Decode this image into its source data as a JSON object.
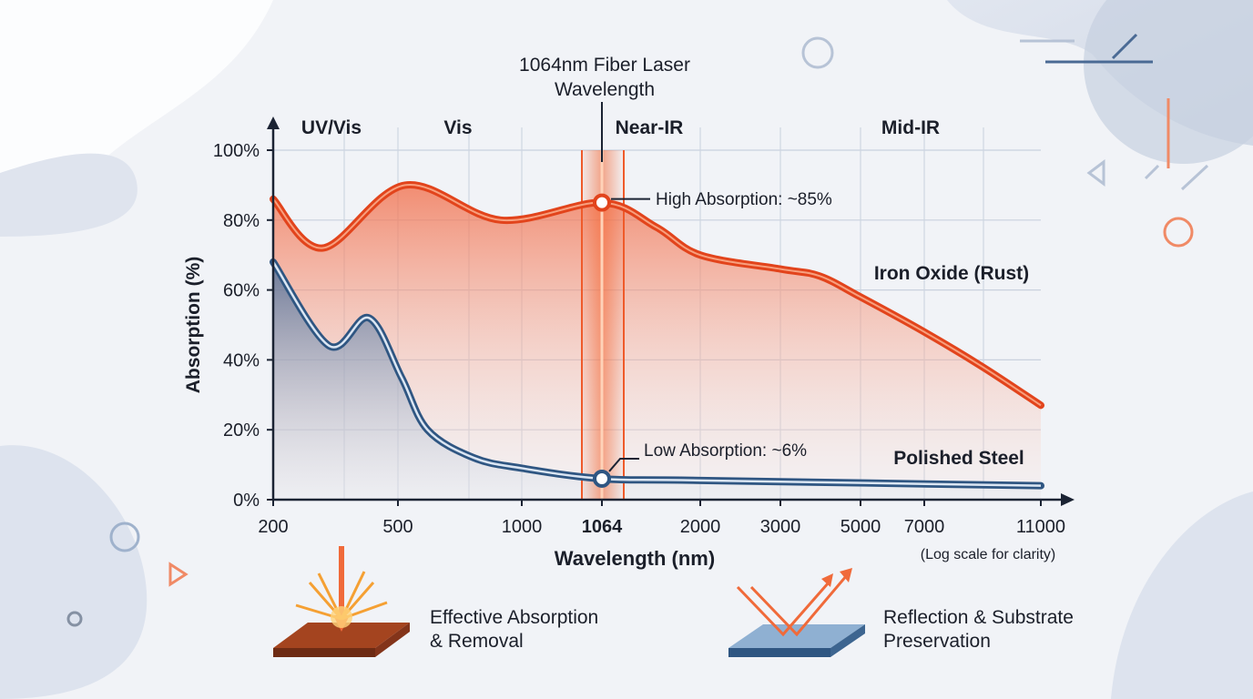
{
  "chart_data": {
    "type": "area",
    "xlabel": "Wavelength (nm)",
    "xlabel_note": "(Log scale for clarity)",
    "ylabel": "Absorption (%)",
    "x_scale": "log",
    "xlim": [
      200,
      11000
    ],
    "ylim": [
      0,
      100
    ],
    "x_ticks": [
      200,
      500,
      1000,
      1064,
      2000,
      3000,
      5000,
      7000,
      11000
    ],
    "y_ticks": [
      "0%",
      "20%",
      "40%",
      "60%",
      "80%",
      "100%"
    ],
    "grid": true,
    "regions": [
      "UV/Vis",
      "Vis",
      "Near-IR",
      "Mid-IR"
    ],
    "series": [
      {
        "name": "Iron Oxide (Rust)",
        "color": "#e2441c",
        "x": [
          200,
          288,
          520,
          889,
          1064,
          1507,
          2000,
          3000,
          3850,
          5000,
          7000,
          8775,
          11000
        ],
        "y": [
          86,
          72,
          90,
          80,
          85,
          78,
          70,
          66,
          64,
          58,
          48,
          38,
          27
        ]
      },
      {
        "name": "Polished Steel",
        "color": "#2f5682",
        "x": [
          200,
          302,
          404,
          510,
          590,
          764,
          1000,
          1064,
          2000,
          11000
        ],
        "y": [
          68,
          44,
          52,
          35,
          20,
          12,
          9,
          6,
          5.5,
          4
        ]
      }
    ],
    "highlight": {
      "x": 1064,
      "label": "1064nm Fiber Laser Wavelength",
      "label_line1": "1064nm Fiber Laser",
      "label_line2": "Wavelength",
      "color": "#f4622c"
    },
    "annotations": [
      {
        "text": "High Absorption: ~85%",
        "x": 1064,
        "y": 85
      },
      {
        "text": "Low Absorption: ~6%",
        "x": 1064,
        "y": 6
      }
    ]
  },
  "captions": {
    "absorption_line1": "Effective Absorption",
    "absorption_line2": "& Removal",
    "reflection_line1": "Reflection & Substrate",
    "reflection_line2": "Preservation"
  }
}
